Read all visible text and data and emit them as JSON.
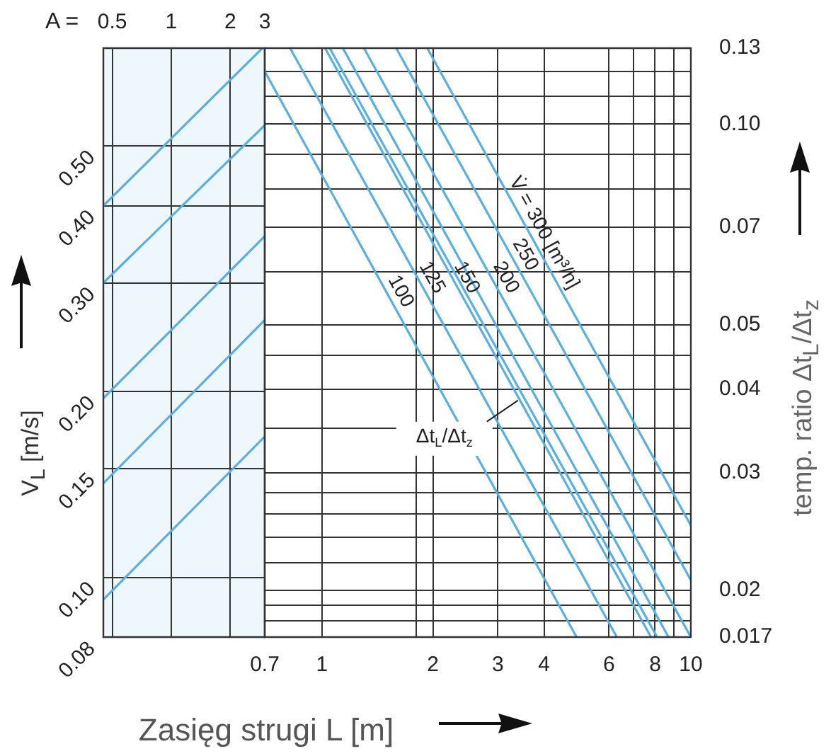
{
  "chart_data": [
    {
      "type": "line",
      "xlabel": "A =",
      "ylabel": "V$_{L}$ [m/s]",
      "log": "xy",
      "xlim": [
        0.45,
        3
      ],
      "xticks": [
        0.5,
        1,
        2,
        3
      ],
      "ylim": [
        0.08,
        0.72
      ],
      "yticks": [
        0.08,
        {
          "value": 0.1,
          "label": "0.10"
        },
        0.15,
        {
          "value": 0.2,
          "label": "0.20"
        },
        {
          "value": 0.3,
          "label": "0.30"
        },
        {
          "value": 0.4,
          "label": "0.40"
        },
        {
          "value": 0.5,
          "label": "0.50"
        }
      ],
      "grid": true,
      "bands": [
        {
          "axis": "x",
          "from": 0.45,
          "to": 3,
          "color": "#eef7fc"
        }
      ],
      "series": [
        {
          "color": "#5aaee0",
          "x": [
            0.45,
            2.92
          ],
          "values": [
            0.4,
            0.72
          ]
        },
        {
          "color": "#5aaee0",
          "x": [
            0.45,
            3
          ],
          "values": [
            0.3,
            0.54
          ]
        },
        {
          "color": "#5aaee0",
          "x": [
            0.45,
            3
          ],
          "values": [
            0.195,
            0.357
          ]
        },
        {
          "color": "#5aaee0",
          "x": [
            0.45,
            3
          ],
          "values": [
            0.142,
            0.261
          ]
        },
        {
          "color": "#5aaee0",
          "x": [
            0.45,
            3
          ],
          "values": [
            0.092,
            0.169
          ]
        }
      ]
    },
    {
      "type": "line",
      "xlabel": "Zasięg strugi L [m]",
      "ylabel": "temp. ratio Δt$_{L}$/Δt$_{z}$",
      "log": "xy",
      "xlim": [
        0.7,
        10
      ],
      "xticks": [
        0.7,
        1,
        {
          "value": 1.8,
          "label": null
        },
        2,
        3,
        4,
        6,
        {
          "value": 7,
          "label": null
        },
        8,
        {
          "value": 9,
          "label": null
        },
        10
      ],
      "ylim": [
        0.017,
        0.13
      ],
      "yticks": [
        0.13,
        {
          "value": 0.12,
          "label": null
        },
        {
          "value": 0.11,
          "label": null
        },
        {
          "value": 0.1,
          "label": "0.10"
        },
        {
          "value": 0.09,
          "label": null
        },
        {
          "value": 0.08,
          "label": null
        },
        0.07,
        {
          "value": 0.06,
          "label": null
        },
        0.05,
        {
          "value": 0.045,
          "label": null
        },
        0.04,
        {
          "value": 0.035,
          "label": null
        },
        0.03,
        {
          "value": 0.028,
          "label": null
        },
        {
          "value": 0.026,
          "label": null
        },
        {
          "value": 0.024,
          "label": null
        },
        {
          "value": 0.022,
          "label": null
        },
        0.02,
        {
          "value": 0.019,
          "label": null
        },
        {
          "value": 0.018,
          "label": null
        },
        0.017
      ],
      "grid": true,
      "annotations": [
        {
          "text": "Δt$_{L}$/Δt$_{z}$",
          "x": 3.4,
          "y": 0.0385
        }
      ],
      "series": [
        {
          "name": "100",
          "color": "#5aaee0",
          "x": [
            0.7,
            4.9
          ],
          "values": [
            0.12,
            0.017
          ]
        },
        {
          "name": "125",
          "color": "#5aaee0",
          "x": [
            0.82,
            6.3
          ],
          "values": [
            0.13,
            0.017
          ]
        },
        {
          "name": "150",
          "color": "#5aaee0",
          "x": [
            1.02,
            7.8
          ],
          "values": [
            0.13,
            0.017
          ]
        },
        {
          "color": "#5aaee0",
          "x": [
            1.05,
            8.1
          ],
          "values": [
            0.13,
            0.017
          ]
        },
        {
          "color": "#5aaee0",
          "x": [
            1.14,
            8.7
          ],
          "values": [
            0.13,
            0.017
          ]
        },
        {
          "name": "200",
          "color": "#5aaee0",
          "x": [
            1.3,
            10
          ],
          "values": [
            0.13,
            0.017
          ]
        },
        {
          "name": "250",
          "color": "#5aaee0",
          "x": [
            1.59,
            10
          ],
          "values": [
            0.13,
            0.0207
          ]
        },
        {
          "name": "V̇ = 300 [m³/h]",
          "color": "#5aaee0",
          "x": [
            1.93,
            10
          ],
          "values": [
            0.13,
            0.025
          ]
        }
      ]
    }
  ]
}
